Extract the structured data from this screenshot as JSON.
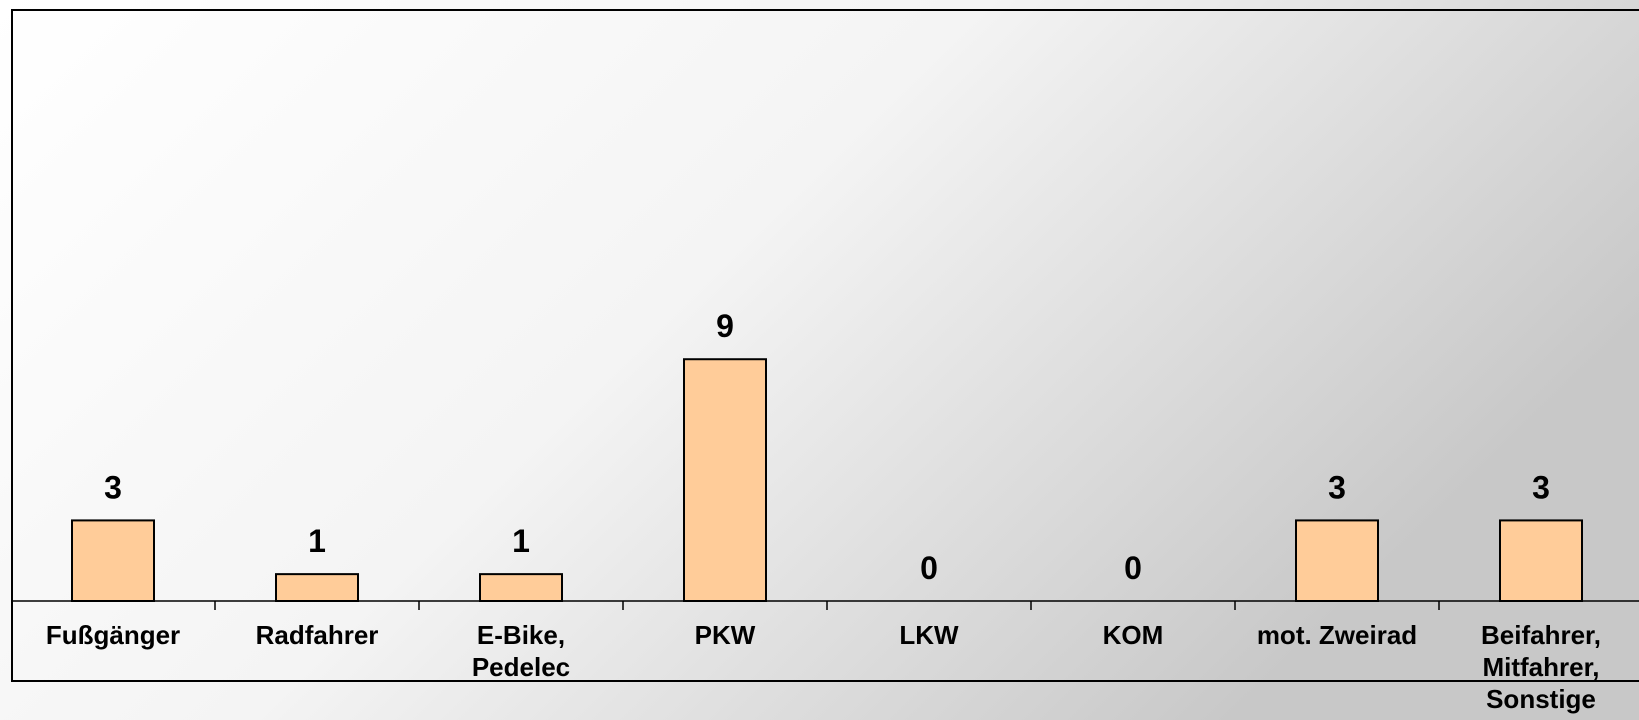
{
  "chart_data": {
    "type": "bar",
    "categories": [
      "Fußgänger",
      "Radfahrer",
      "E-Bike,\nPedelec",
      "PKW",
      "LKW",
      "KOM",
      "mot. Zweirad",
      "Beifahrer,\nMitfahrer,\nSonstige"
    ],
    "values": [
      3,
      1,
      1,
      9,
      0,
      0,
      3,
      3
    ],
    "title": "",
    "xlabel": "",
    "ylabel": "",
    "ylim": [
      0,
      22
    ],
    "grid": false,
    "legend": "none",
    "data_labels": true,
    "colors": {
      "bar_fill": "#FFCC99",
      "bar_stroke": "#000000",
      "background_light": "#FFFFFF",
      "background_dark": "#C8C8C8"
    }
  }
}
